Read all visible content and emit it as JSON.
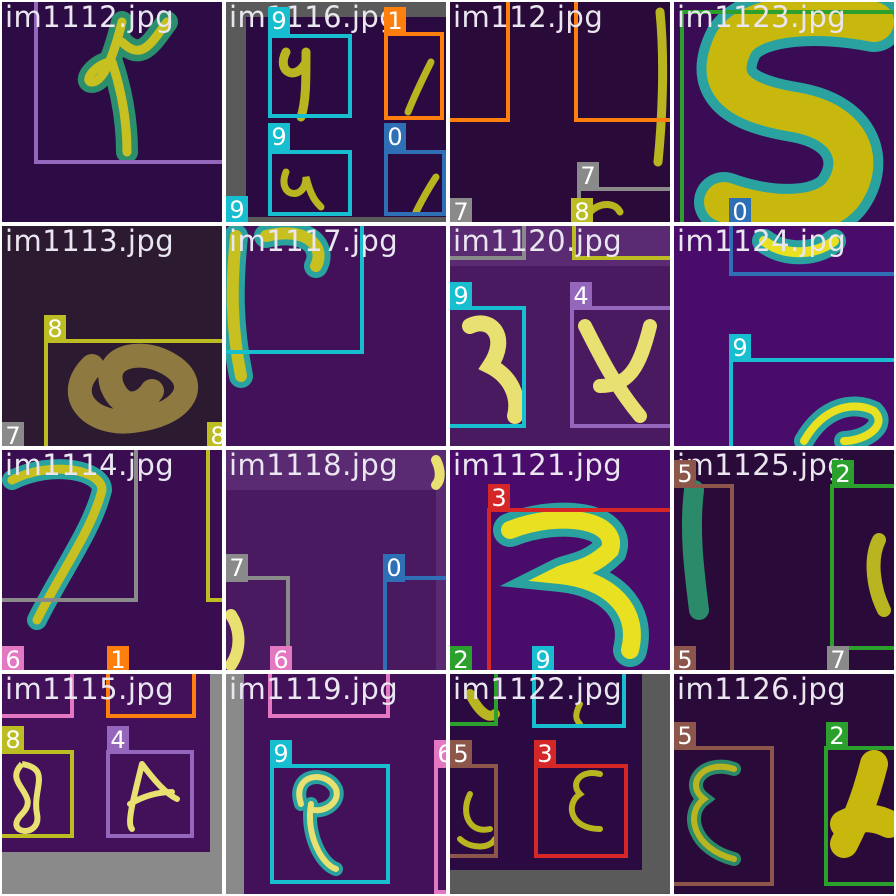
{
  "tiles": [
    {
      "file": "im1112.jpg",
      "labels": []
    },
    {
      "file": "im1116.jpg",
      "labels": [
        "9",
        "1",
        "9",
        "0",
        "9"
      ]
    },
    {
      "file": "im112.jpg",
      "labels": [
        "7",
        "7",
        "8"
      ]
    },
    {
      "file": "im1123.jpg",
      "labels": [
        "0"
      ]
    },
    {
      "file": "im1113.jpg",
      "labels": [
        "8",
        "7",
        "8"
      ]
    },
    {
      "file": "im1117.jpg",
      "labels": []
    },
    {
      "file": "im1120.jpg",
      "labels": [
        "9",
        "4"
      ]
    },
    {
      "file": "im1124.jpg",
      "labels": [
        "9"
      ]
    },
    {
      "file": "im1114.jpg",
      "labels": [
        "6",
        "1"
      ]
    },
    {
      "file": "im1118.jpg",
      "labels": [
        "7",
        "0",
        "6"
      ]
    },
    {
      "file": "im1121.jpg",
      "labels": [
        "3",
        "2",
        "9"
      ]
    },
    {
      "file": "im1125.jpg",
      "labels": [
        "5",
        "2",
        "5",
        "7"
      ]
    },
    {
      "file": "im1115.jpg",
      "labels": [
        "8",
        "4"
      ]
    },
    {
      "file": "im1119.jpg",
      "labels": [
        "9",
        "6"
      ]
    },
    {
      "file": "im1122.jpg",
      "labels": [
        "5",
        "3"
      ]
    },
    {
      "file": "im1126.jpg",
      "labels": [
        "5",
        "2"
      ]
    }
  ],
  "colors": {
    "class_0": "#2f6fb5",
    "class_1": "#ff7f0e",
    "class_2": "#2ca02c",
    "class_3": "#d62728",
    "class_4": "#9467bd",
    "class_5": "#8c564b",
    "class_6": "#e377c2",
    "class_7": "#8a8a8a",
    "class_8": "#bcbd22",
    "class_9": "#17becf"
  }
}
